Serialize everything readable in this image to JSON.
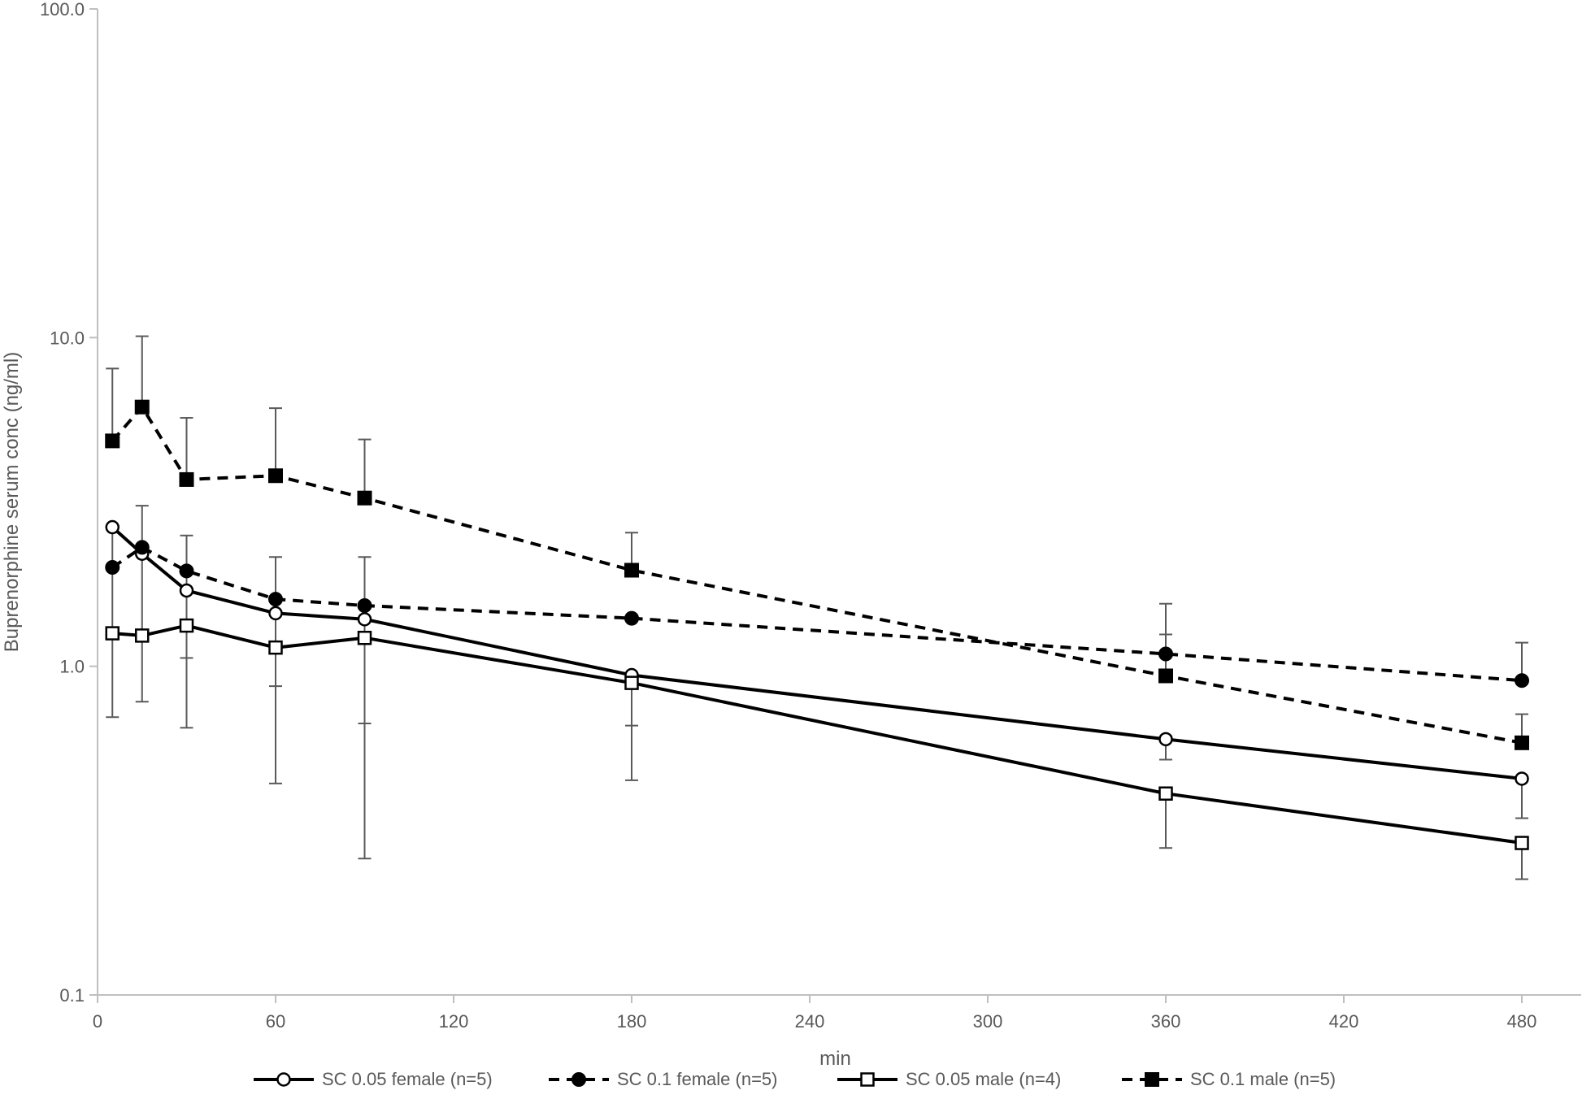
{
  "chart_data": {
    "type": "line",
    "title": "",
    "xlabel": "min",
    "ylabel": "Buprenorphine serum conc (ng/ml)",
    "x_scale": "linear",
    "y_scale": "log10",
    "xlim": [
      0,
      500
    ],
    "ylim": [
      0.1,
      100
    ],
    "x_ticks": [
      0,
      60,
      120,
      180,
      240,
      300,
      360,
      420,
      480
    ],
    "x_tick_labels": [
      "0",
      "60",
      "120",
      "180",
      "240",
      "300",
      "360",
      "420",
      "480"
    ],
    "y_ticks": [
      0.1,
      1,
      10,
      100
    ],
    "y_tick_labels": [
      "0.1",
      "1.0",
      "10.0",
      "100.0"
    ],
    "grid": false,
    "legend_position": "bottom",
    "x": [
      5,
      15,
      30,
      60,
      90,
      180,
      360,
      480
    ],
    "series": [
      {
        "name": "SC 0.05 female (n=5)",
        "color": "#000000",
        "dash": "solid",
        "marker": "circle-open",
        "values": [
          2.65,
          2.2,
          1.7,
          1.45,
          1.39,
          0.94,
          0.6,
          0.455
        ],
        "error_upper": [
          2.65,
          3.08,
          2.5,
          2.15,
          2.15,
          0.94,
          0.6,
          0.455
        ],
        "error_lower": [
          0.7,
          0.78,
          0.65,
          0.44,
          0.26,
          0.66,
          0.52,
          0.345
        ]
      },
      {
        "name": "SC 0.1 female  (n=5)",
        "color": "#000000",
        "dash": "dashed",
        "marker": "circle-filled",
        "values": [
          2.0,
          2.3,
          1.95,
          1.6,
          1.53,
          1.4,
          1.09,
          0.905
        ],
        "error_upper": [
          2.0,
          2.3,
          1.95,
          1.6,
          1.53,
          1.4,
          1.25,
          1.18
        ],
        "error_lower": [
          2.0,
          2.3,
          1.95,
          1.6,
          1.53,
          1.4,
          1.09,
          0.905
        ]
      },
      {
        "name": "SC 0.05 male  (n=4)",
        "color": "#000000",
        "dash": "solid",
        "marker": "square-open",
        "values": [
          1.26,
          1.24,
          1.33,
          1.14,
          1.22,
          0.89,
          0.41,
          0.29
        ],
        "error_upper": [
          1.26,
          1.24,
          1.33,
          1.14,
          1.22,
          0.89,
          0.41,
          0.29
        ],
        "error_lower": [
          1.26,
          1.24,
          1.06,
          0.87,
          0.67,
          0.45,
          0.28,
          0.225
        ]
      },
      {
        "name": "SC 0.1 male  (n=5)",
        "color": "#000000",
        "dash": "dashed",
        "marker": "square-filled",
        "values": [
          4.85,
          6.15,
          3.7,
          3.8,
          3.25,
          1.96,
          0.935,
          0.585
        ],
        "error_upper": [
          8.05,
          10.1,
          5.7,
          6.1,
          4.9,
          2.55,
          1.55,
          0.715
        ],
        "error_lower": [
          4.85,
          6.15,
          3.7,
          3.8,
          3.25,
          1.96,
          0.935,
          0.585
        ]
      }
    ]
  }
}
